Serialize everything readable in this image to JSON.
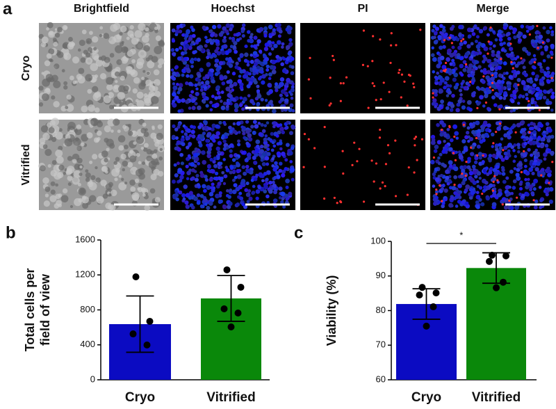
{
  "image_panel": {
    "panel_label": "a",
    "columns": [
      "Brightfield",
      "Hoechst",
      "PI",
      "Merge"
    ],
    "rows": [
      "Cryo",
      "Vitrified"
    ]
  },
  "chart_data": [
    {
      "type": "bar",
      "panel_label": "b",
      "ylabel": [
        "Total cells per",
        "field of view"
      ],
      "categories": [
        "Cryo",
        "Vitrified"
      ],
      "values": [
        637,
        931
      ],
      "errors": [
        322,
        262
      ],
      "points": [
        [
          1178,
          669,
          525,
          398
        ],
        [
          1258,
          1059,
          812,
          764,
          605
        ]
      ],
      "colors": [
        "#0b0bc2",
        "#0a880a"
      ],
      "ylim": [
        0,
        1600
      ],
      "yticks": [
        0,
        400,
        800,
        1200,
        1600
      ]
    },
    {
      "type": "bar",
      "panel_label": "c",
      "ylabel": [
        "Viability (%)"
      ],
      "categories": [
        "Cryo",
        "Vitrified"
      ],
      "values": [
        81.9,
        92.3
      ],
      "errors": [
        4.4,
        4.4
      ],
      "points": [
        [
          86.7,
          85.1,
          84.5,
          81.1,
          75.5
        ],
        [
          96.0,
          95.8,
          94.2,
          88.2,
          86.6
        ]
      ],
      "colors": [
        "#0b0bc2",
        "#0a880a"
      ],
      "ylim": [
        60,
        100
      ],
      "yticks": [
        60,
        70,
        80,
        90,
        100
      ],
      "significance": {
        "text": "*",
        "from": 0,
        "to": 1
      }
    }
  ]
}
